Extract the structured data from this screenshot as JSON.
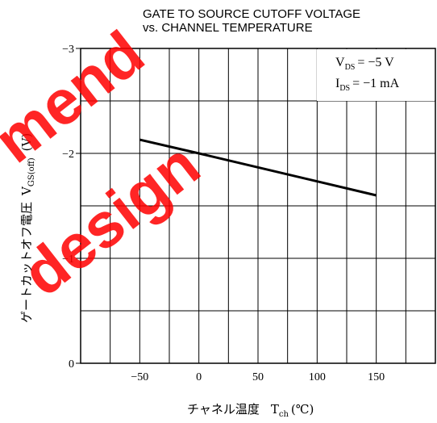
{
  "chart_data": {
    "type": "line",
    "title_line1": "GATE TO SOURCE CUTOFF VOLTAGE",
    "title_line2": "vs. CHANNEL TEMPERATURE",
    "xlabel_main": "チャネル温度",
    "xlabel_sym": "T",
    "xlabel_sub": "ch",
    "xlabel_unit": "(℃)",
    "ylabel_main": "ゲートカットオフ電圧",
    "ylabel_sym": "V",
    "ylabel_sub": "GS(off)",
    "ylabel_unit": "(V)",
    "conditions": [
      {
        "sym": "V",
        "sub": "DS",
        "val": "= −5 V"
      },
      {
        "sym": "I",
        "sub": "DS",
        "val": "= −1 mA"
      }
    ],
    "xlim": [
      -100,
      200
    ],
    "ylim": [
      0,
      -3
    ],
    "x_ticks": [
      -50,
      0,
      50,
      100,
      150
    ],
    "x_tick_labels": [
      "−50",
      "0",
      "50",
      "100",
      "150"
    ],
    "y_ticks": [
      0,
      -1,
      -2,
      -3
    ],
    "y_tick_labels": [
      "0",
      "−1",
      "−2",
      "−3"
    ],
    "grid": true,
    "series": [
      {
        "x": [
          -50,
          0,
          150
        ],
        "y": [
          -2.13,
          -2.0,
          -1.6
        ]
      }
    ]
  },
  "watermark": [
    "mend",
    "design"
  ],
  "colors": {
    "watermark": "#ff0000",
    "line": "#000000"
  }
}
